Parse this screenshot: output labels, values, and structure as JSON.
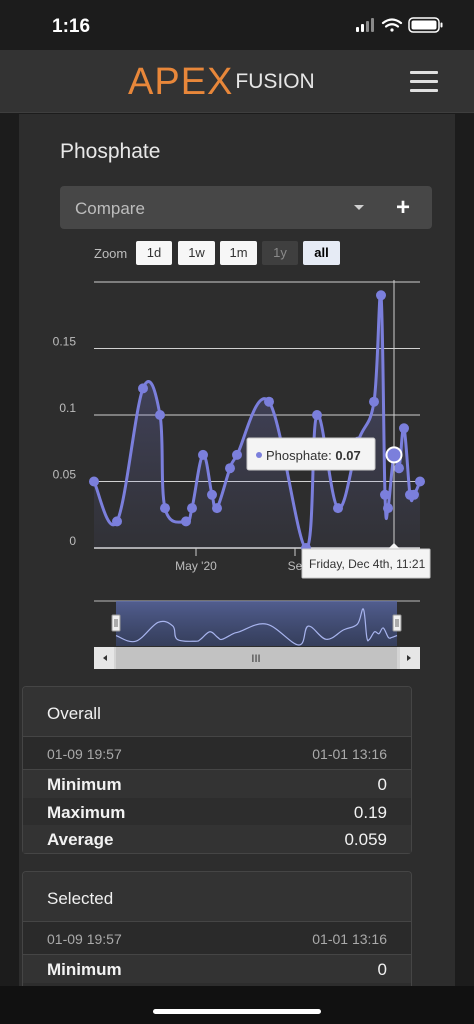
{
  "status_bar": {
    "time": "1:16"
  },
  "header": {
    "logo_main": "APEX",
    "logo_sub": "FUSION"
  },
  "panel": {
    "title": "Phosphate",
    "compare": {
      "label": "Compare",
      "add_label": "+"
    },
    "zoom": {
      "label": "Zoom",
      "buttons": [
        {
          "label": "1d",
          "state": "normal"
        },
        {
          "label": "1w",
          "state": "normal"
        },
        {
          "label": "1m",
          "state": "normal"
        },
        {
          "label": "1y",
          "state": "disabled"
        },
        {
          "label": "all",
          "state": "active"
        }
      ]
    }
  },
  "chart_data": {
    "type": "line",
    "title": "",
    "xlabel": "",
    "ylabel": "",
    "ylim": [
      0,
      0.2
    ],
    "y_ticks": [
      "0",
      "0.05",
      "0.1",
      "0.15"
    ],
    "x_tick_labels": [
      "May '20",
      "Se"
    ],
    "grid": true,
    "series": [
      {
        "name": "Phosphate",
        "color": "#7b7fdc",
        "values": [
          0.05,
          0.02,
          0.12,
          0.1,
          0.03,
          0.02,
          0.03,
          0.07,
          0.04,
          0.03,
          0.06,
          0.07,
          0.11,
          0.0,
          0.1,
          0.03,
          0.08,
          0.11,
          0.19,
          0.04,
          0.03,
          0.07,
          0.06,
          0.09,
          0.04,
          0.04,
          0.05
        ]
      }
    ],
    "tooltip": {
      "series": "Phosphate",
      "value": "0.07",
      "date": "Friday, Dec 4th, 11:21"
    },
    "navigator": {
      "scroll_label": "III"
    }
  },
  "overall": {
    "title": "Overall",
    "range_from": "01-09 19:57",
    "range_to": "01-01 13:16",
    "stats": [
      {
        "label": "Minimum",
        "value": "0"
      },
      {
        "label": "Maximum",
        "value": "0.19"
      },
      {
        "label": "Average",
        "value": "0.059"
      }
    ]
  },
  "selected": {
    "title": "Selected",
    "range_from": "01-09 19:57",
    "range_to": "01-01 13:16",
    "stats": [
      {
        "label": "Minimum",
        "value": "0"
      }
    ]
  }
}
